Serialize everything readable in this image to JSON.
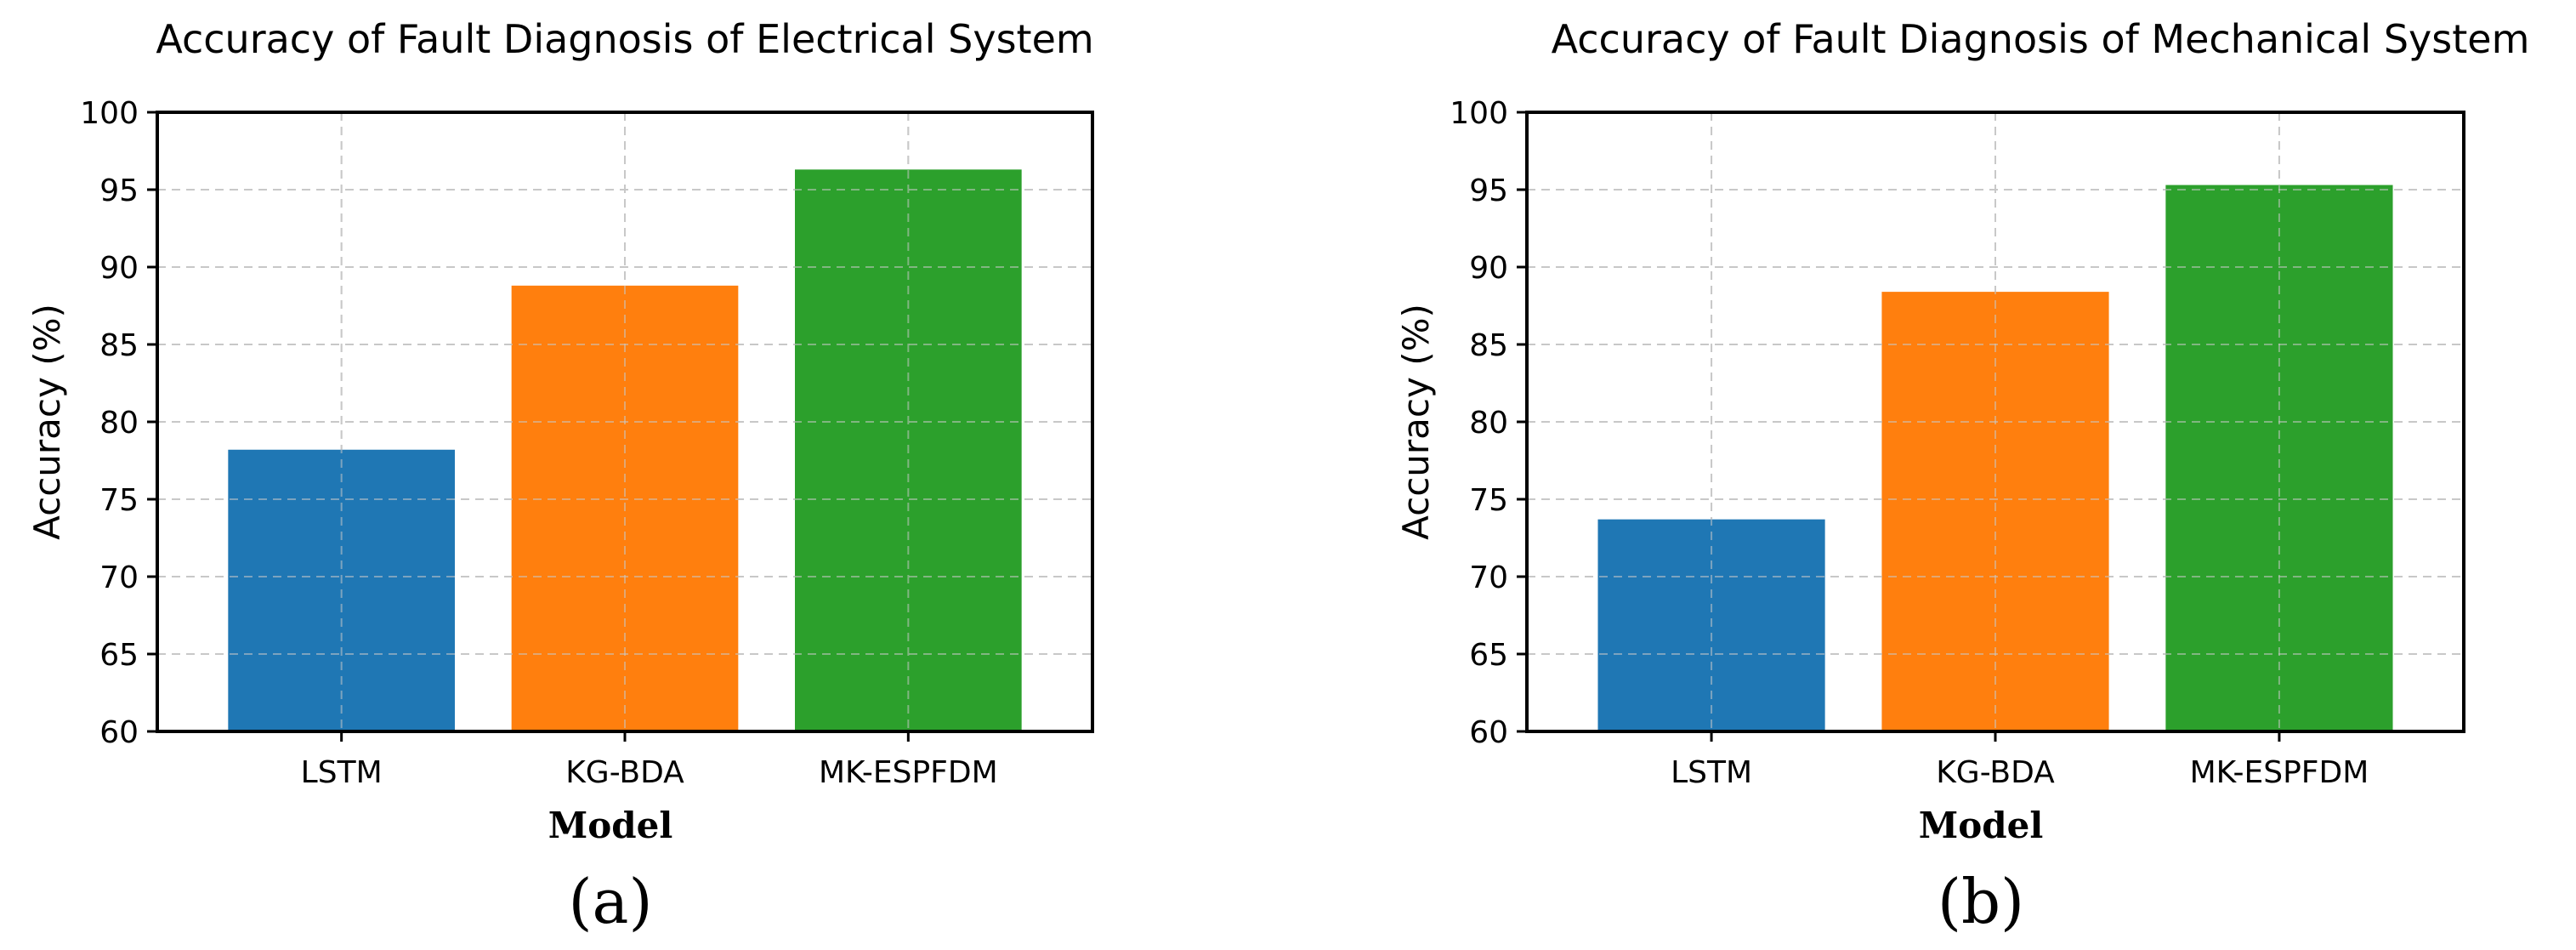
{
  "chart_data": [
    {
      "type": "bar",
      "title": "Accuracy of Fault Diagnosis of Electrical System",
      "xlabel": "Model",
      "ylabel": "Accuracy (%)",
      "panel_label": "(a)",
      "categories": [
        "LSTM",
        "KG-BDA",
        "MK-ESPFDM"
      ],
      "values": [
        78.2,
        88.8,
        96.3
      ],
      "colors": [
        "#1f77b4",
        "#ff7f0e",
        "#2ca02c"
      ],
      "ylim": [
        60,
        100
      ],
      "yticks": [
        "60",
        "65",
        "70",
        "75",
        "80",
        "85",
        "90",
        "95",
        "100"
      ],
      "grid": true
    },
    {
      "type": "bar",
      "title": "Accuracy of Fault Diagnosis of Mechanical System",
      "xlabel": "Model",
      "ylabel": "Accuracy (%)",
      "panel_label": "(b)",
      "categories": [
        "LSTM",
        "KG-BDA",
        "MK-ESPFDM"
      ],
      "values": [
        73.7,
        88.4,
        95.3
      ],
      "colors": [
        "#1f77b4",
        "#ff7f0e",
        "#2ca02c"
      ],
      "ylim": [
        60,
        100
      ],
      "yticks": [
        "60",
        "65",
        "70",
        "75",
        "80",
        "85",
        "90",
        "95",
        "100"
      ],
      "grid": true
    }
  ]
}
